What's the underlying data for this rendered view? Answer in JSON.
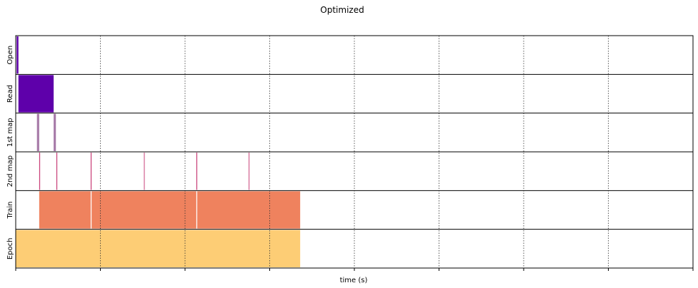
{
  "chart_data": {
    "type": "timeline",
    "title": "Optimized",
    "xlabel": "time (s)",
    "xlim": [
      0,
      7.5
    ],
    "grid": true,
    "rows": [
      {
        "name": "Open",
        "color": "#5e00aa",
        "spans": [
          [
            0.01,
            0.03
          ]
        ]
      },
      {
        "name": "Read",
        "color": "#5e00aa",
        "spans": [
          [
            0.03,
            0.42
          ]
        ]
      },
      {
        "name": "1st map",
        "color": "#a77aa8",
        "spans": [
          [
            0.235,
            0.26
          ],
          [
            0.42,
            0.445
          ]
        ]
      },
      {
        "name": "2nd map",
        "color": "#c9427a",
        "spans": [
          [
            0.26,
            0.27
          ],
          [
            0.45,
            0.46
          ],
          [
            0.83,
            0.84
          ],
          [
            1.42,
            1.425
          ],
          [
            2.0,
            2.01
          ],
          [
            2.58,
            2.585
          ]
        ]
      },
      {
        "name": "Train",
        "color": "#ef825e",
        "spans": [
          [
            0.26,
            0.83
          ],
          [
            0.84,
            2.0
          ],
          [
            2.01,
            3.15
          ]
        ]
      },
      {
        "name": "Epoch",
        "color": "#fdcd75",
        "spans": [
          [
            0.0,
            3.15
          ]
        ]
      }
    ]
  }
}
